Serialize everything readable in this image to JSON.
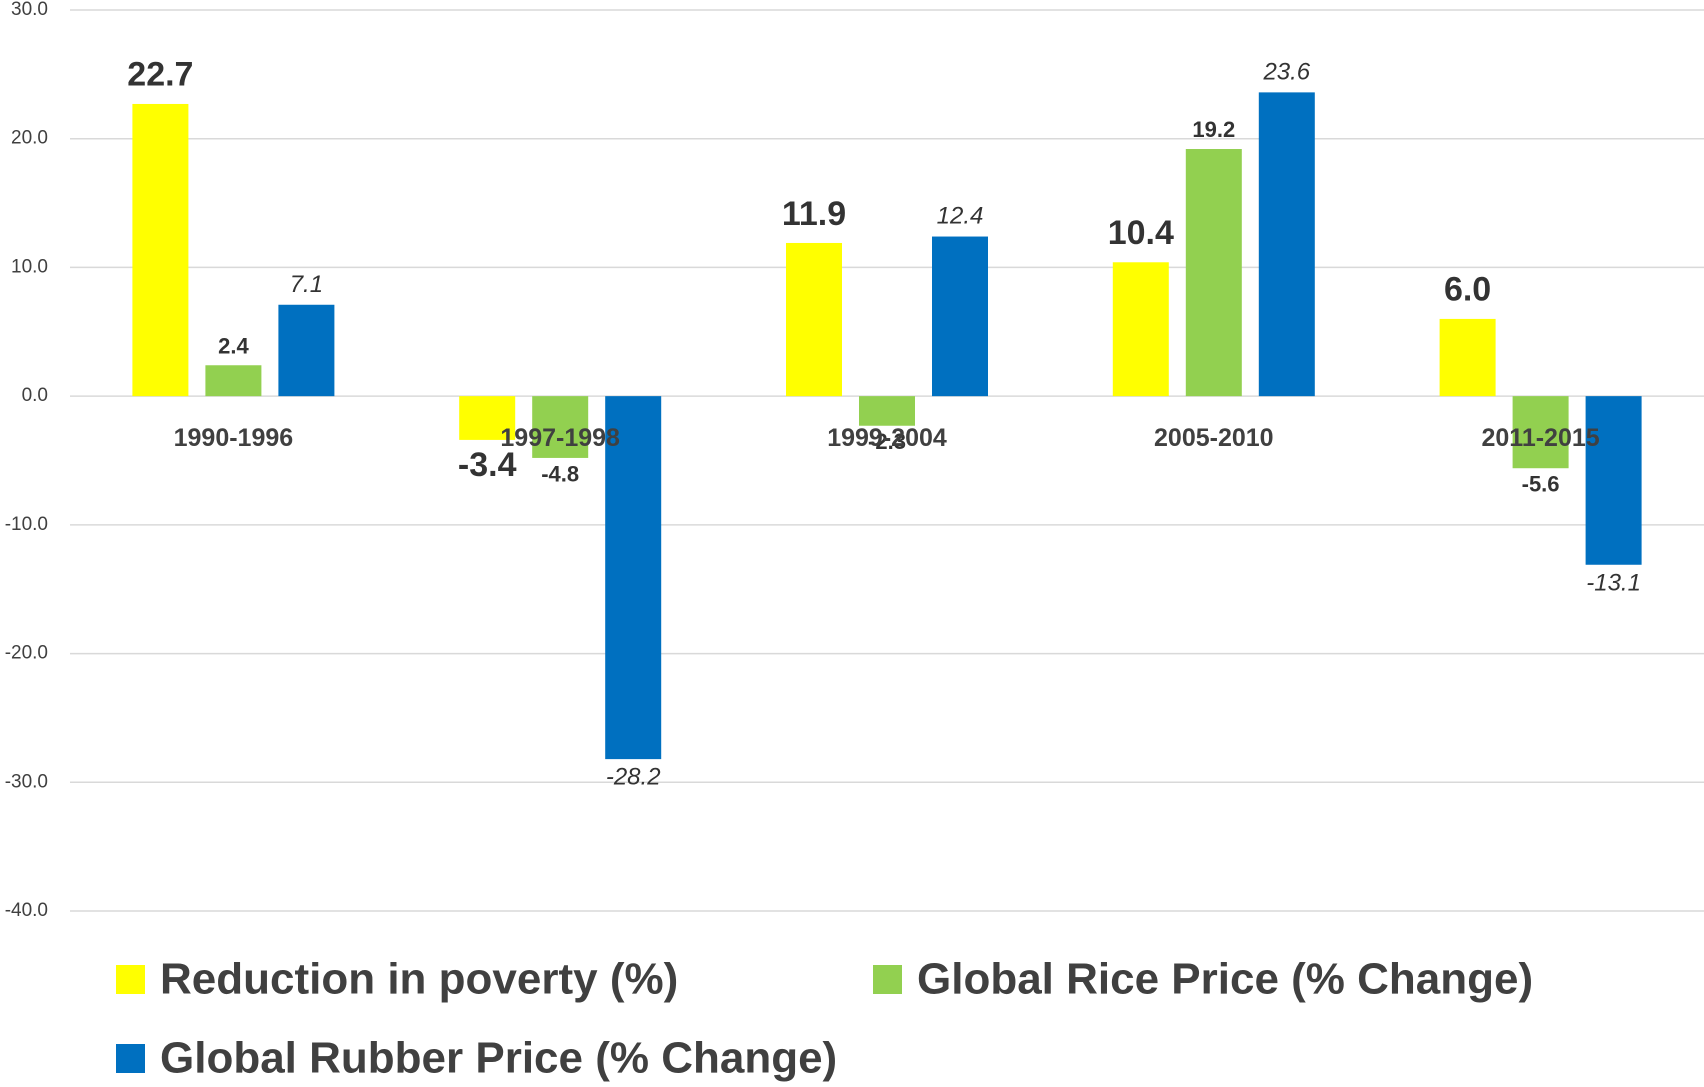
{
  "chart_data": {
    "type": "bar",
    "categories": [
      "1990-1996",
      "1997-1998",
      "1999-2004",
      "2005-2010",
      "2011-2015"
    ],
    "series": [
      {
        "name": "Reduction in poverty (%)",
        "color": "#ffff00",
        "values": [
          22.7,
          -3.4,
          11.9,
          10.4,
          6.0
        ],
        "value_labels": [
          "22.7",
          "-3.4",
          "11.9",
          "10.4",
          "6.0"
        ]
      },
      {
        "name": "Global Rice Price (% Change)",
        "color": "#92d050",
        "values": [
          2.4,
          -4.8,
          -2.3,
          19.2,
          -5.6
        ],
        "value_labels": [
          "2.4",
          "-4.8",
          "-2.3",
          "19.2",
          "-5.6"
        ]
      },
      {
        "name": "Global Rubber Price (% Change)",
        "color": "#0070c0",
        "values": [
          7.1,
          -28.2,
          12.4,
          23.6,
          -13.1
        ],
        "value_labels": [
          "7.1",
          "-28.2",
          "12.4",
          "23.6",
          "-13.1"
        ]
      }
    ],
    "ylim": [
      -40,
      30
    ],
    "yticks": [
      {
        "value": -40,
        "label": "-40.0"
      },
      {
        "value": -30,
        "label": "-30.0"
      },
      {
        "value": -20,
        "label": "-20.0"
      },
      {
        "value": -10,
        "label": "-10.0"
      },
      {
        "value": 0,
        "label": "0.0"
      },
      {
        "value": 10,
        "label": "10.0"
      },
      {
        "value": 20,
        "label": "20.0"
      },
      {
        "value": 30,
        "label": "30.0"
      }
    ],
    "grid": true,
    "legend": "bottom"
  }
}
